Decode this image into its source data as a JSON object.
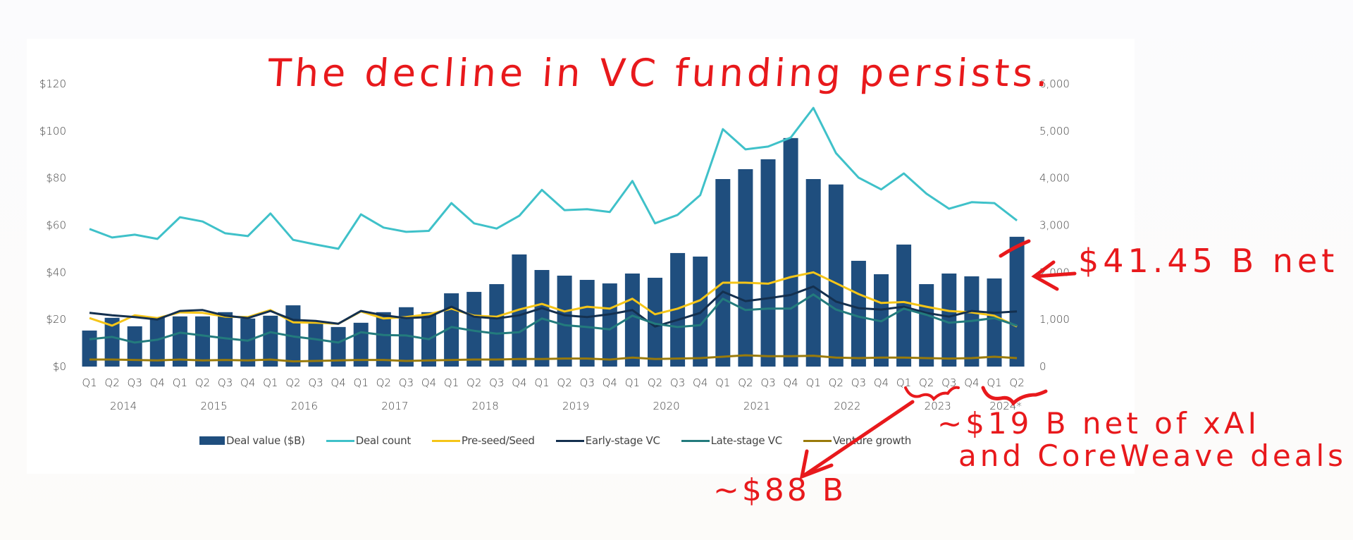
{
  "annotations": {
    "title": "The decline in VC funding persists.",
    "q2_2024_note": "$41.45 B net",
    "q2_2024_adjusted_note_line1": "~$19 B net of xAI",
    "q2_2024_adjusted_note_line2": "and CoreWeave deals",
    "h1_2023_note": "~$88 B"
  },
  "legend": {
    "deal_value": "Deal value ($B)",
    "deal_count": "Deal count",
    "seed": "Pre-seed/Seed",
    "early": "Early-stage VC",
    "late": "Late-stage VC",
    "growth": "Venture growth"
  },
  "colors": {
    "deal_value": "#1f4e7e",
    "deal_count": "#3fc1c9",
    "seed": "#f5c518",
    "early": "#14304f",
    "late": "#237b7d",
    "growth": "#9a7b0b",
    "annotation": "#e8191c"
  },
  "chart_data": {
    "type": "bar",
    "title": "",
    "xlabel": "",
    "ylabel": "Deal value ($B)",
    "y2label": "Deal count",
    "ylim": [
      0,
      120
    ],
    "y2lim": [
      0,
      6000
    ],
    "yticks": [
      "$0",
      "$20",
      "$40",
      "$60",
      "$80",
      "$100",
      "$120"
    ],
    "y2ticks": [
      "0",
      "1,000",
      "2,000",
      "3,000",
      "4,000",
      "5,000",
      "6,000"
    ],
    "grid": false,
    "legend_position": "bottom",
    "years": [
      "2014",
      "2015",
      "2016",
      "2017",
      "2018",
      "2019",
      "2020",
      "2021",
      "2022",
      "2023",
      "2024*"
    ],
    "categories": [
      "Q1",
      "Q2",
      "Q3",
      "Q4",
      "Q1",
      "Q2",
      "Q3",
      "Q4",
      "Q1",
      "Q2",
      "Q3",
      "Q4",
      "Q1",
      "Q2",
      "Q3",
      "Q4",
      "Q1",
      "Q2",
      "Q3",
      "Q4",
      "Q1",
      "Q2",
      "Q3",
      "Q4",
      "Q1",
      "Q2",
      "Q3",
      "Q4",
      "Q1",
      "Q2",
      "Q3",
      "Q4",
      "Q1",
      "Q2",
      "Q3",
      "Q4",
      "Q1",
      "Q2",
      "Q3",
      "Q4",
      "Q1",
      "Q2"
    ],
    "series": [
      {
        "name": "Deal value ($B)",
        "type": "bar",
        "axis": "left",
        "values": [
          15.3,
          20.7,
          17.1,
          20.7,
          21.3,
          21.3,
          23.1,
          20.4,
          21.6,
          26.0,
          18.3,
          16.8,
          18.6,
          23.1,
          25.2,
          23.1,
          31.1,
          31.7,
          35.0,
          47.6,
          41.0,
          38.6,
          36.8,
          35.3,
          39.5,
          37.7,
          48.2,
          46.7,
          79.6,
          83.8,
          88.0,
          97.0,
          79.6,
          77.3,
          44.9,
          39.2,
          51.8,
          35.0,
          39.5,
          38.3,
          37.4,
          55.1
        ]
      },
      {
        "name": "Deal count",
        "type": "line",
        "axis": "right",
        "values": [
          2920,
          2740,
          2800,
          2710,
          3170,
          3080,
          2830,
          2770,
          3250,
          2690,
          2590,
          2500,
          3230,
          2950,
          2860,
          2880,
          3470,
          3040,
          2930,
          3200,
          3750,
          3320,
          3340,
          3280,
          3940,
          3040,
          3220,
          3640,
          5040,
          4610,
          4670,
          4860,
          5490,
          4530,
          4010,
          3760,
          4100,
          3670,
          3350,
          3490,
          3470,
          3100
        ]
      },
      {
        "name": "Pre-seed/Seed",
        "type": "line",
        "axis": "right",
        "values": [
          1030,
          870,
          1090,
          1030,
          1150,
          1140,
          1060,
          1050,
          1200,
          940,
          930,
          910,
          1170,
          1020,
          1050,
          1110,
          1230,
          1080,
          1060,
          1210,
          1330,
          1170,
          1270,
          1230,
          1440,
          1110,
          1230,
          1410,
          1780,
          1780,
          1760,
          1900,
          2000,
          1770,
          1540,
          1350,
          1370,
          1270,
          1180,
          1150,
          1080,
          850
        ]
      },
      {
        "name": "Early-stage VC",
        "type": "line",
        "axis": "right",
        "values": [
          1140,
          1090,
          1050,
          1000,
          1180,
          1200,
          1080,
          1030,
          1180,
          990,
          970,
          910,
          1180,
          1090,
          1030,
          1050,
          1270,
          1060,
          1020,
          1090,
          1240,
          1090,
          1050,
          1110,
          1200,
          850,
          990,
          1140,
          1590,
          1390,
          1450,
          1520,
          1700,
          1380,
          1240,
          1210,
          1270,
          1140,
          1060,
          1180,
          1140,
          1170
        ]
      },
      {
        "name": "Late-stage VC",
        "type": "line",
        "axis": "right",
        "values": [
          580,
          630,
          510,
          570,
          720,
          660,
          600,
          550,
          730,
          640,
          580,
          510,
          730,
          670,
          660,
          580,
          840,
          760,
          700,
          730,
          1020,
          880,
          840,
          790,
          1080,
          910,
          840,
          880,
          1440,
          1200,
          1230,
          1230,
          1530,
          1210,
          1060,
          960,
          1230,
          1100,
          930,
          970,
          1030,
          870
        ]
      },
      {
        "name": "Venture growth",
        "type": "line",
        "axis": "right",
        "values": [
          150,
          150,
          140,
          130,
          150,
          130,
          140,
          130,
          150,
          110,
          120,
          130,
          140,
          140,
          120,
          130,
          140,
          150,
          150,
          160,
          160,
          170,
          170,
          150,
          190,
          160,
          170,
          180,
          210,
          240,
          220,
          220,
          230,
          190,
          180,
          190,
          190,
          180,
          170,
          180,
          210,
          180
        ]
      }
    ]
  }
}
